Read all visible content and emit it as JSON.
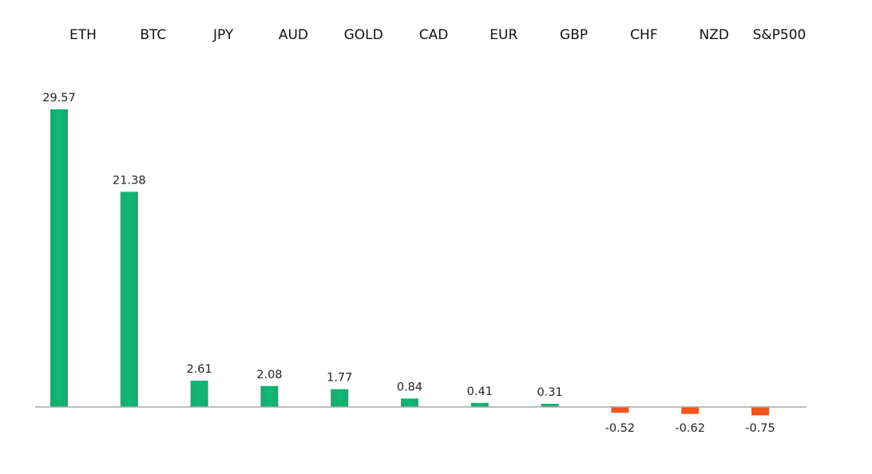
{
  "chart_data": {
    "type": "bar",
    "title": "",
    "xlabel": "",
    "ylabel": "",
    "categories": [
      "ETH",
      "BTC",
      "JPY",
      "AUD",
      "GOLD",
      "CAD",
      "EUR",
      "GBP",
      "CHF",
      "NZD",
      "S&P500"
    ],
    "values": [
      29.57,
      21.38,
      2.61,
      2.08,
      1.77,
      0.84,
      0.41,
      0.31,
      -0.52,
      -0.62,
      -0.75
    ],
    "value_labels": [
      "29.57",
      "21.38",
      "2.61",
      "2.08",
      "1.77",
      "0.84",
      "0.41",
      "0.31",
      "-0.52",
      "-0.62",
      "-0.75"
    ],
    "ylim": [
      -0.75,
      29.57
    ],
    "grid": false,
    "legend": "none",
    "category_labels_position": "top",
    "colors": {
      "positive_top": "#0fa86a",
      "positive_bottom": "#12b877",
      "negative": "#f2541b",
      "axis": "#a6a6a6"
    }
  }
}
